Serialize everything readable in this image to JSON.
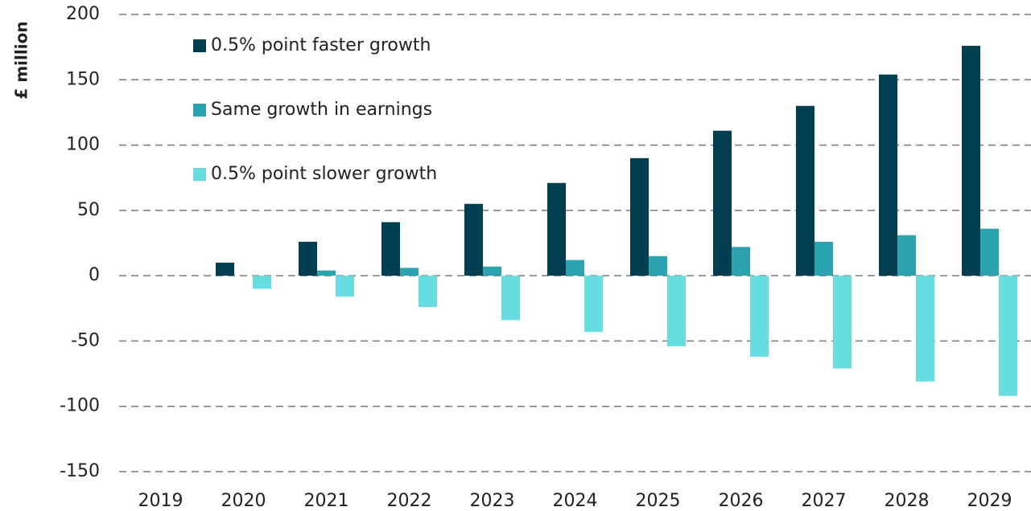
{
  "chart_data": {
    "type": "bar",
    "y_label": "£ million",
    "categories": [
      "2019",
      "2020",
      "2021",
      "2022",
      "2023",
      "2024",
      "2025",
      "2026",
      "2027",
      "2028",
      "2029"
    ],
    "series": [
      {
        "name": "0.5% point faster growth",
        "color": "#003f52",
        "values": [
          0,
          10,
          26,
          41,
          55,
          71,
          90,
          111,
          130,
          154,
          176
        ]
      },
      {
        "name": "Same growth in earnings",
        "color": "#2ba3b0",
        "values": [
          0,
          0,
          4,
          6,
          7,
          12,
          15,
          22,
          26,
          31,
          36
        ]
      },
      {
        "name": "0.5% point slower growth",
        "color": "#66dde0",
        "values": [
          0,
          -10,
          -16,
          -24,
          -34,
          -43,
          -54,
          -62,
          -71,
          -81,
          -92
        ]
      }
    ],
    "ylim": [
      -150,
      200
    ],
    "yticks": [
      -150,
      -100,
      -50,
      0,
      50,
      100,
      150,
      200
    ],
    "grid": true,
    "legend": "top-left"
  }
}
